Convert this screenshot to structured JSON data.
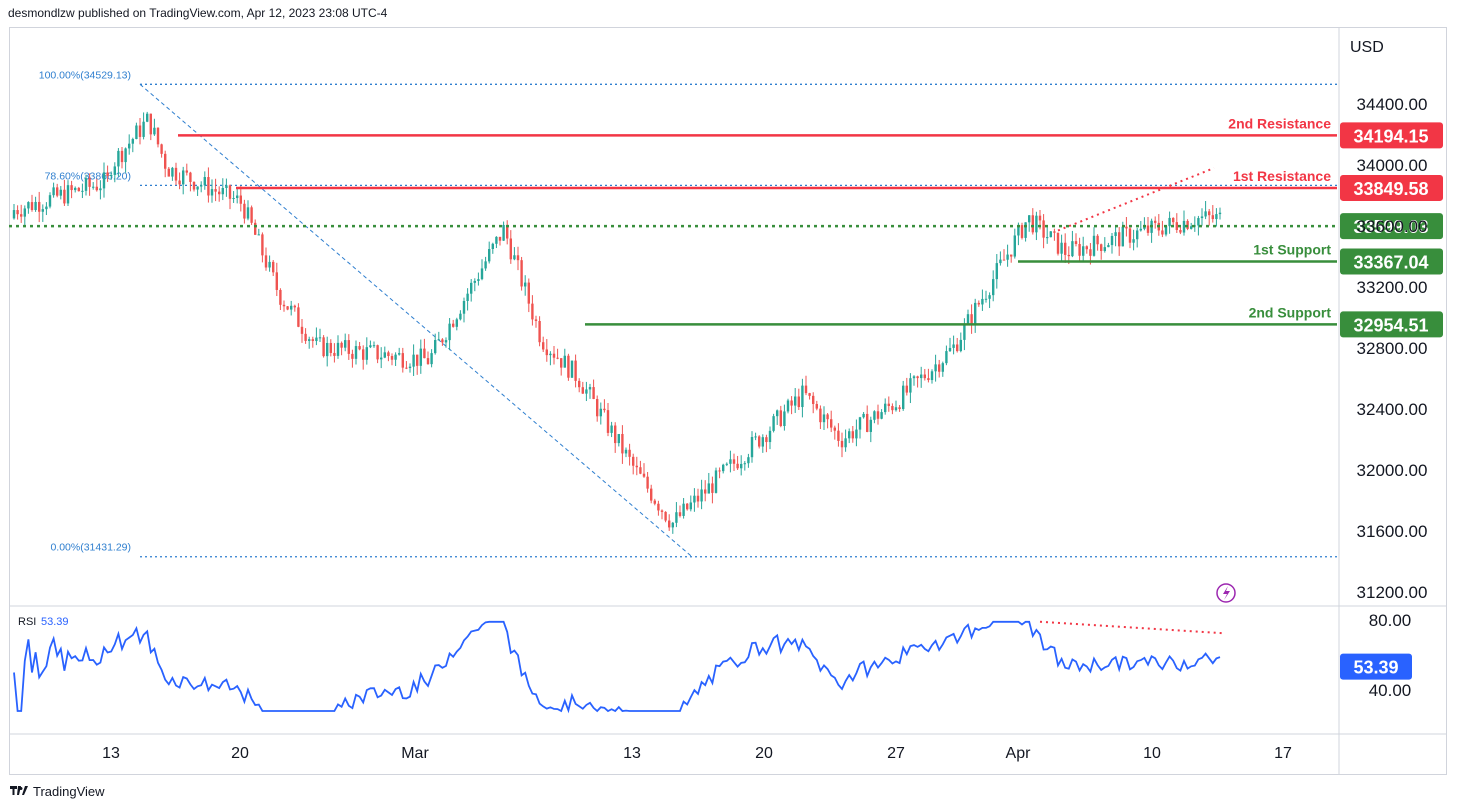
{
  "header": {
    "text": "desmondlzw published on TradingView.com, Apr 12, 2023 23:08 UTC-4"
  },
  "footer": {
    "brand": "TradingView",
    "logo_icon": "tradingview-logo-icon"
  },
  "price_axis": {
    "currency": "USD",
    "ticks": [
      "34400.00",
      "34000.00",
      "33600.00",
      "33200.00",
      "32800.00",
      "32400.00",
      "32000.00",
      "31600.00",
      "31200.00"
    ]
  },
  "time_axis": {
    "labels": [
      "13",
      "20",
      "Mar",
      "13",
      "20",
      "27",
      "Apr",
      "10",
      "17"
    ]
  },
  "fibonacci": {
    "levels": [
      {
        "label": "100.00%(34529.13)",
        "price": 34529.13
      },
      {
        "label": "78.60%(33866.20)",
        "price": 33866.2
      },
      {
        "label": "0.00%(31431.29)",
        "price": 31431.29
      }
    ]
  },
  "levels": {
    "resistance2": {
      "label": "2nd Resistance",
      "price_label": "34194.15",
      "price": 34194.15,
      "color": "#f23645"
    },
    "resistance1": {
      "label": "1st Resistance",
      "price_label": "33849.58",
      "price": 33849.58,
      "color": "#f23645"
    },
    "pivot": {
      "price_label": "33599.03",
      "price": 33599.03,
      "color": "#388e3c"
    },
    "support1": {
      "label": "1st Support",
      "price_label": "33367.04",
      "price": 33367.04,
      "color": "#388e3c"
    },
    "support2": {
      "label": "2nd Support",
      "price_label": "32954.51",
      "price": 32954.51,
      "color": "#388e3c"
    }
  },
  "rsi": {
    "title": "RSI",
    "value_text": "53.39",
    "value": 53.39,
    "ticks": [
      "80.00",
      "40.00"
    ],
    "color": "#2962ff"
  },
  "colors": {
    "up": "#26a69a",
    "down": "#ef5350",
    "fib": "#2f7fcf",
    "accent_icon": "#9c27b0"
  },
  "icons": {
    "alert": "lightning-bolt-icon"
  },
  "chart_data": {
    "type": "candlestick",
    "title": "",
    "price_range": [
      31000,
      34900
    ],
    "rsi_range": [
      25,
      90
    ],
    "approx_close_path": [
      {
        "date": "2023-02-13",
        "close": 34000
      },
      {
        "date": "2023-02-15",
        "close": 34300
      },
      {
        "date": "2023-02-16",
        "close": 33980
      },
      {
        "date": "2023-02-20",
        "close": 33750
      },
      {
        "date": "2023-02-22",
        "close": 33150
      },
      {
        "date": "2023-02-24",
        "close": 32810
      },
      {
        "date": "2023-03-02",
        "close": 32720
      },
      {
        "date": "2023-03-06",
        "close": 33580
      },
      {
        "date": "2023-03-08",
        "close": 32860
      },
      {
        "date": "2023-03-10",
        "close": 32600
      },
      {
        "date": "2023-03-13",
        "close": 32000
      },
      {
        "date": "2023-03-15",
        "close": 31650
      },
      {
        "date": "2023-03-20",
        "close": 32250
      },
      {
        "date": "2023-03-22",
        "close": 32500
      },
      {
        "date": "2023-03-24",
        "close": 32200
      },
      {
        "date": "2023-03-27",
        "close": 32450
      },
      {
        "date": "2023-03-30",
        "close": 32800
      },
      {
        "date": "2023-04-03",
        "close": 33650
      },
      {
        "date": "2023-04-05",
        "close": 33430
      },
      {
        "date": "2023-04-10",
        "close": 33590
      },
      {
        "date": "2023-04-12",
        "close": 33650
      }
    ]
  }
}
